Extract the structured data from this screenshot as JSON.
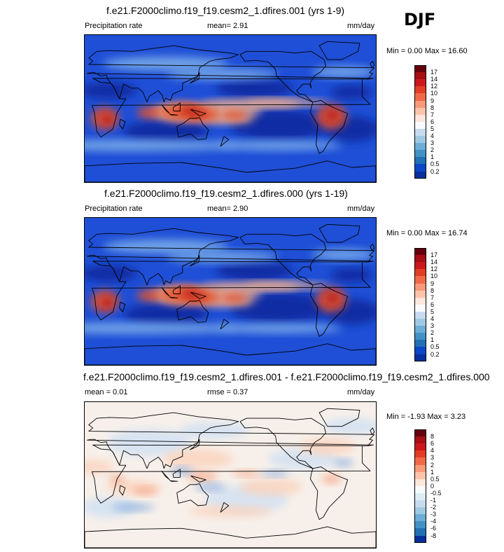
{
  "season": "DJF",
  "panels": [
    {
      "title": "f.e21.F2000climo.f19_f19.cesm2_1.dfires.001 (yrs 1-9)",
      "left_label": "Precipitation rate",
      "center_label": "mean=   2.91",
      "units": "mm/day",
      "minmax": "Min =   0.00 Max =  16.60",
      "field": "abs",
      "colorbar": {
        "ticks": [
          "17",
          "14",
          "12",
          "10",
          "9",
          "8",
          "7",
          "6",
          "5",
          "4",
          "3",
          "2",
          "1",
          "0.5",
          "0.2"
        ],
        "colors": [
          "#67000d",
          "#a50f15",
          "#cb181d",
          "#e23d25",
          "#f06a4a",
          "#f89a7a",
          "#fcc4aa",
          "#fde6da",
          "#f7fbff",
          "#c6dbef",
          "#9ecae1",
          "#6baed6",
          "#4292c6",
          "#2171b5",
          "#0b47c7",
          "#08309d"
        ]
      }
    },
    {
      "title": "f.e21.F2000climo.f19_f19.cesm2_1.dfires.000 (yrs 1-19)",
      "left_label": "Precipitation rate",
      "center_label": "mean=   2.90",
      "units": "mm/day",
      "minmax": "Min =   0.00 Max =  16.74",
      "field": "abs",
      "colorbar": {
        "ticks": [
          "17",
          "14",
          "12",
          "10",
          "9",
          "8",
          "7",
          "6",
          "5",
          "4",
          "3",
          "2",
          "1",
          "0.5",
          "0.2"
        ],
        "colors": [
          "#67000d",
          "#a50f15",
          "#cb181d",
          "#e23d25",
          "#f06a4a",
          "#f89a7a",
          "#fcc4aa",
          "#fde6da",
          "#f7fbff",
          "#c6dbef",
          "#9ecae1",
          "#6baed6",
          "#4292c6",
          "#2171b5",
          "#0b47c7",
          "#08309d"
        ]
      }
    },
    {
      "title": "f.e21.F2000climo.f19_f19.cesm2_1.dfires.001 - f.e21.F2000climo.f19_f19.cesm2_1.dfires.000",
      "left_label": "mean =   0.01",
      "center_label": "rmse =   0.37",
      "units": "mm/day",
      "minmax": "Min =  -1.93 Max =   3.23",
      "field": "diff",
      "colorbar": {
        "ticks": [
          "8",
          "6",
          "4",
          "3",
          "2",
          "1",
          "0.5",
          "0",
          "-0.5",
          "-1",
          "-2",
          "-3",
          "-4",
          "-6",
          "-8"
        ],
        "colors": [
          "#67000d",
          "#a50f15",
          "#cb181d",
          "#e23d25",
          "#f06a4a",
          "#f89a7a",
          "#fcc4aa",
          "#fde6da",
          "#f7fbff",
          "#deebf7",
          "#c6dbef",
          "#9ecae1",
          "#6baed6",
          "#4292c6",
          "#2171b5",
          "#08309d"
        ]
      }
    }
  ]
}
